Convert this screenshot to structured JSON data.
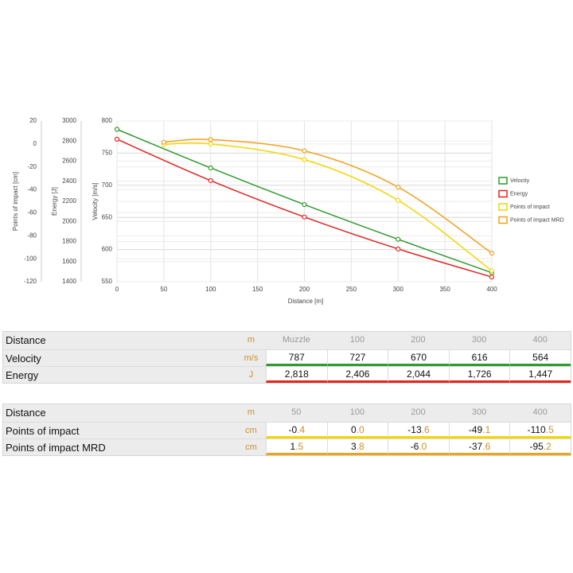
{
  "chart_data": {
    "type": "line",
    "xlabel": "Distance [m]",
    "xlim": [
      0,
      400
    ],
    "xticks": [
      0,
      50,
      100,
      150,
      200,
      250,
      300,
      350,
      400
    ],
    "ylabel": "Velocity [m/s]",
    "ylim": [
      550,
      800
    ],
    "yticks": [
      550,
      600,
      650,
      700,
      750,
      800
    ],
    "y2label": "Energy [J]",
    "y2lim": [
      1400,
      3000
    ],
    "y2ticks": [
      1400,
      1600,
      1800,
      2000,
      2200,
      2400,
      2600,
      2800,
      3000
    ],
    "y3label": "Points of impact [cm]",
    "y3lim": [
      -120,
      20
    ],
    "y3ticks": [
      -120,
      -100,
      -80,
      -60,
      -40,
      -20,
      0,
      20
    ],
    "grid": true,
    "series": [
      {
        "name": "Velocity",
        "color": "#2e9b2e",
        "axis": "y",
        "x": [
          0,
          100,
          200,
          300,
          400
        ],
        "values": [
          787,
          727,
          670,
          616,
          564
        ]
      },
      {
        "name": "Energy",
        "color": "#e3241f",
        "axis": "y2",
        "x": [
          0,
          100,
          200,
          300,
          400
        ],
        "values": [
          2818,
          2406,
          2044,
          1726,
          1447
        ]
      },
      {
        "name": "Points of impact",
        "color": "#f2d600",
        "axis": "y3",
        "x": [
          50,
          100,
          200,
          300,
          400
        ],
        "values": [
          -0.4,
          0.0,
          -13.6,
          -49.1,
          -110.5
        ]
      },
      {
        "name": "Points of impact MRD",
        "color": "#f0a21e",
        "axis": "y3",
        "x": [
          50,
          100,
          200,
          300,
          400
        ],
        "values": [
          1.5,
          3.8,
          -6.0,
          -37.6,
          -95.2
        ]
      }
    ]
  },
  "tables": [
    {
      "header": [
        "Distance",
        "m",
        "Muzzle",
        "100",
        "200",
        "300",
        "400"
      ],
      "rows": [
        {
          "label": "Velocity",
          "unit": "m/s",
          "cells": [
            "787",
            "727",
            "670",
            "616",
            "564"
          ]
        },
        {
          "label": "Energy",
          "unit": "J",
          "cells": [
            "2,818",
            "2,406",
            "2,044",
            "1,726",
            "1,447"
          ]
        }
      ]
    },
    {
      "header": [
        "Distance",
        "m",
        "50",
        "100",
        "200",
        "300",
        "400"
      ],
      "rows": [
        {
          "label": "Points of impact",
          "unit": "cm",
          "cells": [
            "-0.4",
            "0.0",
            "-13.6",
            "-49.1",
            "-110.5"
          ]
        },
        {
          "label": "Points of impact MRD",
          "unit": "cm",
          "cells": [
            "1.5",
            "3.8",
            "-6.0",
            "-37.6",
            "-95.2"
          ]
        }
      ]
    }
  ]
}
